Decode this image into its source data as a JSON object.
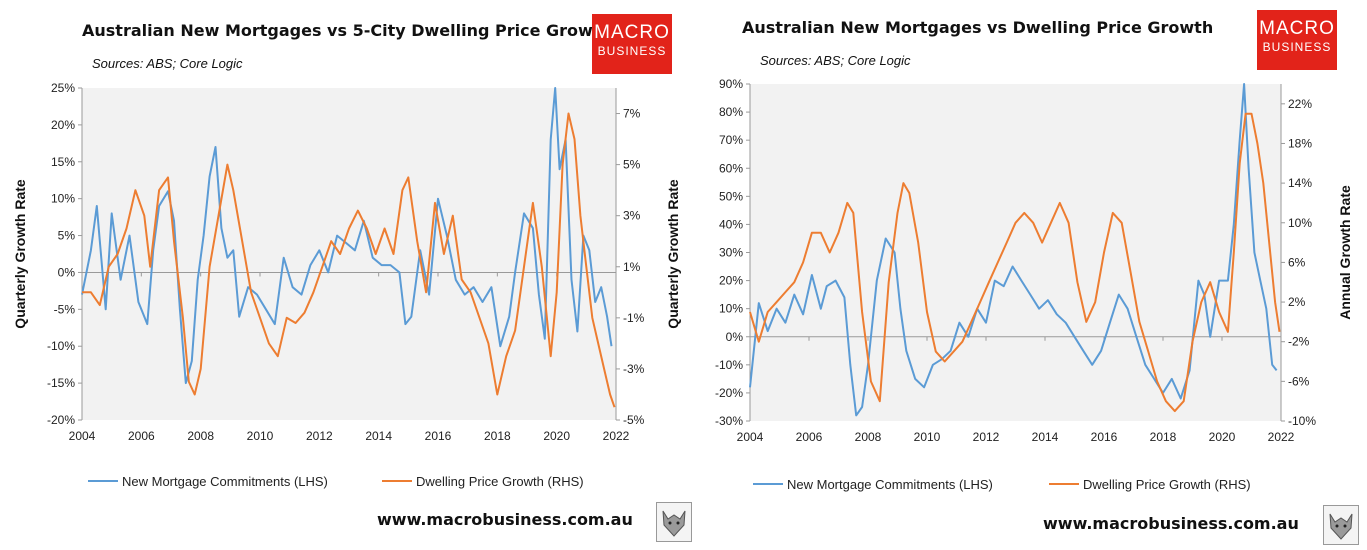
{
  "branding": {
    "logo_line1": "MACRO",
    "logo_line2": "BUSINESS",
    "website": "www.macrobusiness.com.au"
  },
  "colors": {
    "blue": "#5b9bd5",
    "orange": "#ed7d31",
    "logo_red": "#e2231a"
  },
  "chart_data": [
    {
      "type": "line",
      "title": "Australian New Mortgages vs 5-City Dwelling Price Growth",
      "subtitle": "Sources: ABS; Core Logic",
      "ylabel": "Quarterly  Growth Rate",
      "y2label": "Quarterly Growth Rate",
      "xlim": [
        2004,
        2022
      ],
      "ylim": [
        -20,
        25
      ],
      "y2lim": [
        -5,
        8
      ],
      "x_ticks": [
        2004,
        2006,
        2008,
        2010,
        2012,
        2014,
        2016,
        2018,
        2020,
        2022
      ],
      "y_ticks": [
        -20,
        -15,
        -10,
        -5,
        0,
        5,
        10,
        15,
        20,
        25
      ],
      "y2_ticks": [
        -5,
        -3,
        -1,
        1,
        3,
        5,
        7
      ],
      "y_tick_labels": [
        "-20%",
        "-15%",
        "-10%",
        "-5%",
        "0%",
        "5%",
        "10%",
        "15%",
        "20%",
        "25%"
      ],
      "y2_tick_labels": [
        "-5%",
        "-3%",
        "-1%",
        "1%",
        "3%",
        "5%",
        "7%"
      ],
      "x_tick_labels": [
        "2004",
        "2006",
        "2008",
        "2010",
        "2012",
        "2014",
        "2016",
        "2018",
        "2020",
        "2022"
      ],
      "grid": false,
      "legend_position": "bottom",
      "series": [
        {
          "name": "New Mortgage Commitments (LHS)",
          "axis": "left",
          "color": "#5b9bd5",
          "x": [
            2004.0,
            2004.3,
            2004.5,
            2004.8,
            2005.0,
            2005.3,
            2005.6,
            2005.9,
            2006.2,
            2006.4,
            2006.6,
            2006.9,
            2007.1,
            2007.3,
            2007.5,
            2007.7,
            2007.9,
            2008.1,
            2008.3,
            2008.5,
            2008.7,
            2008.9,
            2009.1,
            2009.3,
            2009.6,
            2009.9,
            2010.2,
            2010.5,
            2010.8,
            2011.1,
            2011.4,
            2011.7,
            2012.0,
            2012.3,
            2012.6,
            2012.9,
            2013.2,
            2013.5,
            2013.8,
            2014.1,
            2014.4,
            2014.7,
            2014.9,
            2015.1,
            2015.4,
            2015.7,
            2016.0,
            2016.3,
            2016.6,
            2016.9,
            2017.2,
            2017.5,
            2017.8,
            2018.1,
            2018.4,
            2018.6,
            2018.9,
            2019.2,
            2019.4,
            2019.6,
            2019.8,
            2019.95,
            2020.1,
            2020.3,
            2020.5,
            2020.7,
            2020.9,
            2021.1,
            2021.3,
            2021.5,
            2021.7,
            2021.85
          ],
          "y": [
            -3,
            3,
            9,
            -5,
            8,
            -1,
            5,
            -4,
            -7,
            3,
            9,
            11,
            7,
            -5,
            -15,
            -12,
            -1,
            5,
            13,
            17,
            6,
            2,
            3,
            -6,
            -2,
            -3,
            -5,
            -7,
            2,
            -2,
            -3,
            1,
            3,
            0,
            5,
            4,
            3,
            7,
            2,
            1,
            1,
            0,
            -7,
            -6,
            3,
            -3,
            10,
            5,
            -1,
            -3,
            -2,
            -4,
            -2,
            -10,
            -6,
            0,
            8,
            6,
            -3,
            -9,
            18,
            25,
            14,
            18,
            -1,
            -8,
            5,
            3,
            -4,
            -2,
            -6,
            -10
          ]
        },
        {
          "name": "Dwelling Price Growth (RHS)",
          "axis": "right",
          "color": "#ed7d31",
          "x": [
            2004.0,
            2004.3,
            2004.6,
            2004.9,
            2005.2,
            2005.5,
            2005.8,
            2006.1,
            2006.3,
            2006.6,
            2006.9,
            2007.1,
            2007.4,
            2007.6,
            2007.8,
            2008.0,
            2008.3,
            2008.6,
            2008.9,
            2009.1,
            2009.4,
            2009.7,
            2010.0,
            2010.3,
            2010.6,
            2010.9,
            2011.2,
            2011.5,
            2011.8,
            2012.1,
            2012.4,
            2012.7,
            2013.0,
            2013.3,
            2013.6,
            2013.9,
            2014.2,
            2014.5,
            2014.8,
            2015.0,
            2015.3,
            2015.6,
            2015.9,
            2016.2,
            2016.5,
            2016.8,
            2017.1,
            2017.4,
            2017.7,
            2018.0,
            2018.3,
            2018.6,
            2018.9,
            2019.2,
            2019.5,
            2019.8,
            2020.0,
            2020.2,
            2020.4,
            2020.6,
            2020.8,
            2021.0,
            2021.2,
            2021.4,
            2021.6,
            2021.8,
            2021.95
          ],
          "y": [
            0,
            0,
            -0.5,
            1,
            1.5,
            2.5,
            4,
            3,
            1,
            4,
            4.5,
            2,
            -1,
            -3.5,
            -4,
            -3,
            1,
            3,
            5,
            4,
            2,
            0,
            -1,
            -2,
            -2.5,
            -1,
            -1.2,
            -0.8,
            0,
            1,
            2,
            1.5,
            2.5,
            3.2,
            2.5,
            1.5,
            2.5,
            1.5,
            4,
            4.5,
            2,
            0,
            3.5,
            1.5,
            3,
            0.5,
            0,
            -1,
            -2,
            -4,
            -2.5,
            -1.5,
            1,
            3.5,
            1,
            -2.5,
            0,
            5,
            7,
            6,
            3,
            1,
            -1,
            -2,
            -3,
            -4,
            -4.5
          ]
        }
      ]
    },
    {
      "type": "line",
      "title": "Australian New Mortgages vs Dwelling Price Growth",
      "subtitle": "Sources: ABS; Core Logic",
      "ylabel": "",
      "y2label": "Annual Growth Rate",
      "xlim": [
        2004,
        2022
      ],
      "ylim": [
        -30,
        90
      ],
      "y2lim": [
        -10,
        24
      ],
      "x_ticks": [
        2004,
        2006,
        2008,
        2010,
        2012,
        2014,
        2016,
        2018,
        2020,
        2022
      ],
      "y_ticks": [
        -30,
        -20,
        -10,
        0,
        10,
        20,
        30,
        40,
        50,
        60,
        70,
        80,
        90
      ],
      "y2_ticks": [
        -10,
        -6,
        -2,
        2,
        6,
        10,
        14,
        18,
        22
      ],
      "y_tick_labels": [
        "-30%",
        "-20%",
        "-10%",
        "0%",
        "10%",
        "20%",
        "30%",
        "40%",
        "50%",
        "60%",
        "70%",
        "80%",
        "90%"
      ],
      "y2_tick_labels": [
        "-10%",
        "-6%",
        "-2%",
        "2%",
        "6%",
        "10%",
        "14%",
        "18%",
        "22%"
      ],
      "x_tick_labels": [
        "2004",
        "2006",
        "2008",
        "2010",
        "2012",
        "2014",
        "2016",
        "2018",
        "2020",
        "2022"
      ],
      "grid": false,
      "legend_position": "bottom",
      "series": [
        {
          "name": "New Mortgage Commitments (LHS)",
          "axis": "left",
          "color": "#5b9bd5",
          "x": [
            2004.0,
            2004.3,
            2004.6,
            2004.9,
            2005.2,
            2005.5,
            2005.8,
            2006.1,
            2006.4,
            2006.6,
            2006.9,
            2007.2,
            2007.4,
            2007.6,
            2007.8,
            2008.0,
            2008.3,
            2008.6,
            2008.9,
            2009.1,
            2009.3,
            2009.6,
            2009.9,
            2010.2,
            2010.5,
            2010.8,
            2011.1,
            2011.4,
            2011.7,
            2012.0,
            2012.3,
            2012.6,
            2012.9,
            2013.2,
            2013.5,
            2013.8,
            2014.1,
            2014.4,
            2014.7,
            2015.0,
            2015.3,
            2015.6,
            2015.9,
            2016.2,
            2016.5,
            2016.8,
            2017.1,
            2017.4,
            2017.7,
            2018.0,
            2018.3,
            2018.6,
            2018.9,
            2019.2,
            2019.4,
            2019.6,
            2019.9,
            2020.2,
            2020.4,
            2020.6,
            2020.75,
            2020.9,
            2021.1,
            2021.3,
            2021.5,
            2021.7,
            2021.85
          ],
          "y": [
            -18,
            12,
            2,
            10,
            5,
            15,
            8,
            22,
            10,
            18,
            20,
            14,
            -10,
            -28,
            -25,
            -10,
            20,
            35,
            30,
            10,
            -5,
            -15,
            -18,
            -10,
            -8,
            -5,
            5,
            0,
            10,
            5,
            20,
            18,
            25,
            20,
            15,
            10,
            13,
            8,
            5,
            0,
            -5,
            -10,
            -5,
            5,
            15,
            10,
            0,
            -10,
            -15,
            -20,
            -15,
            -22,
            -12,
            20,
            15,
            0,
            20,
            20,
            40,
            70,
            90,
            60,
            30,
            20,
            10,
            -10,
            -12
          ]
        },
        {
          "name": "Dwelling Price Growth (RHS)",
          "axis": "right",
          "color": "#ed7d31",
          "x": [
            2004.0,
            2004.3,
            2004.6,
            2004.9,
            2005.2,
            2005.5,
            2005.8,
            2006.1,
            2006.4,
            2006.7,
            2007.0,
            2007.3,
            2007.5,
            2007.8,
            2008.1,
            2008.4,
            2008.7,
            2009.0,
            2009.2,
            2009.4,
            2009.7,
            2010.0,
            2010.3,
            2010.6,
            2010.9,
            2011.2,
            2011.5,
            2011.8,
            2012.1,
            2012.4,
            2012.7,
            2013.0,
            2013.3,
            2013.6,
            2013.9,
            2014.2,
            2014.5,
            2014.8,
            2015.1,
            2015.4,
            2015.7,
            2016.0,
            2016.3,
            2016.6,
            2016.9,
            2017.2,
            2017.5,
            2017.8,
            2018.1,
            2018.4,
            2018.7,
            2019.0,
            2019.3,
            2019.6,
            2019.9,
            2020.2,
            2020.4,
            2020.6,
            2020.8,
            2021.0,
            2021.2,
            2021.4,
            2021.6,
            2021.8,
            2021.95
          ],
          "y": [
            1,
            -2,
            1,
            2,
            3,
            4,
            6,
            9,
            9,
            7,
            9,
            12,
            11,
            1,
            -6,
            -8,
            4,
            11,
            14,
            13,
            8,
            1,
            -3,
            -4,
            -3,
            -2,
            0,
            2,
            4,
            6,
            8,
            10,
            11,
            10,
            8,
            10,
            12,
            10,
            4,
            0,
            2,
            7,
            11,
            10,
            5,
            0,
            -3,
            -6,
            -8,
            -9,
            -8,
            -2,
            2,
            4,
            1,
            -1,
            7,
            16,
            21,
            21,
            18,
            14,
            8,
            2,
            -1
          ]
        }
      ]
    }
  ]
}
